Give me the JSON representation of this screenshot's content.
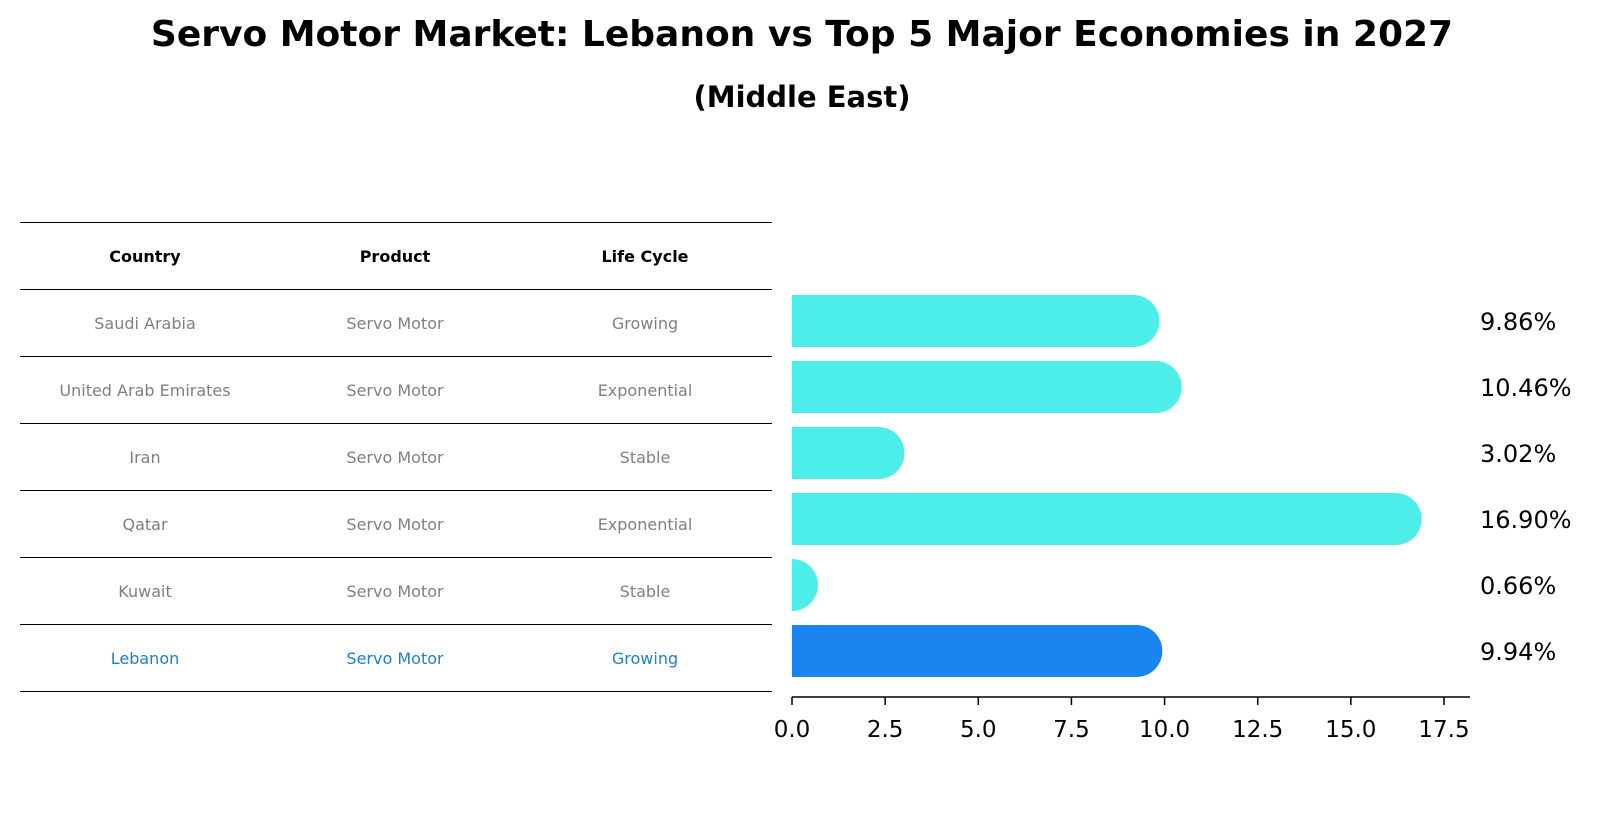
{
  "title": "Servo Motor Market: Lebanon vs Top 5 Major Economies in 2027",
  "subtitle": "(Middle East)",
  "table": {
    "headers": [
      "Country",
      "Product",
      "Life Cycle"
    ],
    "rows": [
      {
        "country": "Saudi Arabia",
        "product": "Servo Motor",
        "life_cycle": "Growing"
      },
      {
        "country": "United Arab Emirates",
        "product": "Servo Motor",
        "life_cycle": "Exponential"
      },
      {
        "country": "Iran",
        "product": "Servo Motor",
        "life_cycle": "Stable"
      },
      {
        "country": "Qatar",
        "product": "Servo Motor",
        "life_cycle": "Exponential"
      },
      {
        "country": "Kuwait",
        "product": "Servo Motor",
        "life_cycle": "Stable"
      },
      {
        "country": "Lebanon",
        "product": "Servo Motor",
        "life_cycle": "Growing"
      }
    ]
  },
  "colors": {
    "bar": "#4deee9",
    "highlight_bar": "#1a85f0",
    "highlight_text": "#1e7fd0",
    "muted_text": "#808080"
  },
  "chart_data": {
    "type": "bar",
    "orientation": "horizontal",
    "categories": [
      "Saudi Arabia",
      "United Arab Emirates",
      "Iran",
      "Qatar",
      "Kuwait",
      "Lebanon"
    ],
    "values": [
      9.86,
      10.46,
      3.02,
      16.9,
      0.66,
      9.94
    ],
    "value_labels": [
      "9.86%",
      "10.46%",
      "3.02%",
      "16.90%",
      "0.66%",
      "9.94%"
    ],
    "highlight_category": "Lebanon",
    "xlim": [
      0,
      17.5
    ],
    "xticks": [
      0.0,
      2.5,
      5.0,
      7.5,
      10.0,
      12.5,
      15.0,
      17.5
    ],
    "xtick_labels": [
      "0.0",
      "2.5",
      "5.0",
      "7.5",
      "10.0",
      "12.5",
      "15.0",
      "17.5"
    ],
    "grid": false
  }
}
